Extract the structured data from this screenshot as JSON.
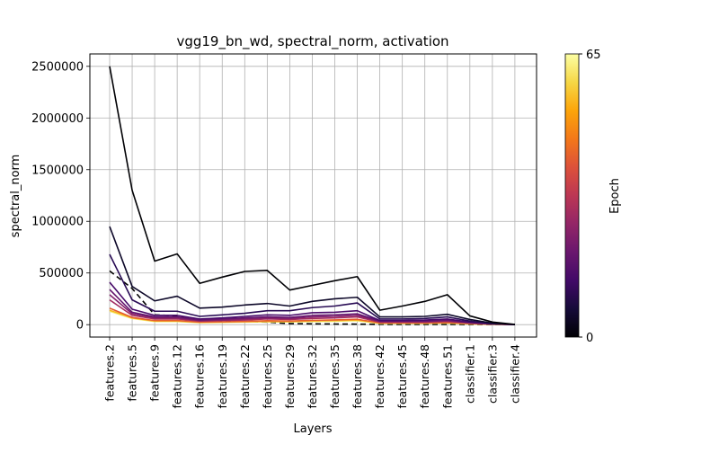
{
  "chart_data": {
    "type": "line",
    "title": "vgg19_bn_wd, spectral_norm, activation",
    "xlabel": "Layers",
    "ylabel": "spectral_norm",
    "categories": [
      "features.2",
      "features.5",
      "features.9",
      "features.12",
      "features.16",
      "features.19",
      "features.22",
      "features.25",
      "features.29",
      "features.32",
      "features.35",
      "features.38",
      "features.42",
      "features.45",
      "features.48",
      "features.51",
      "classifier.1",
      "classifier.3",
      "classifier.4"
    ],
    "ylim": [
      -120000,
      2620000
    ],
    "yticks": [
      0,
      500000,
      1000000,
      1500000,
      2000000,
      2500000
    ],
    "ytick_labels": [
      "0",
      "500000",
      "1000000",
      "1500000",
      "2000000",
      "2500000"
    ],
    "grid": true,
    "colorbar": {
      "label": "Epoch",
      "min": 0,
      "max": 65,
      "min_label": "0",
      "max_label": "65",
      "colormap": "inferno"
    },
    "series": [
      {
        "epoch": 0,
        "color": "#000004",
        "style": "solid",
        "values": [
          2500000,
          1300000,
          615000,
          685000,
          400000,
          460000,
          515000,
          525000,
          335000,
          380000,
          425000,
          465000,
          140000,
          180000,
          225000,
          290000,
          85000,
          25000,
          2000
        ]
      },
      {
        "epoch": 5,
        "color": "#0d0829",
        "style": "solid",
        "values": [
          950000,
          370000,
          230000,
          275000,
          160000,
          170000,
          190000,
          205000,
          180000,
          225000,
          250000,
          265000,
          75000,
          75000,
          80000,
          100000,
          50000,
          15000,
          1000
        ]
      },
      {
        "epoch": 9,
        "color": "#280b54",
        "style": "solid",
        "values": [
          680000,
          240000,
          130000,
          130000,
          80000,
          95000,
          110000,
          135000,
          135000,
          165000,
          180000,
          210000,
          55000,
          55000,
          60000,
          75000,
          35000,
          10000,
          1000
        ]
      },
      {
        "epoch": 14,
        "color": "#480b6a",
        "style": "solid",
        "values": [
          410000,
          150000,
          90000,
          90000,
          55000,
          65000,
          80000,
          95000,
          90000,
          115000,
          120000,
          135000,
          40000,
          40000,
          45000,
          55000,
          25000,
          8000,
          1000
        ]
      },
      {
        "epoch": 18,
        "color": "#65156e",
        "style": "solid",
        "values": [
          340000,
          120000,
          75000,
          75000,
          45000,
          55000,
          65000,
          75000,
          70000,
          90000,
          95000,
          105000,
          35000,
          35000,
          35000,
          45000,
          20000,
          7000,
          1000
        ]
      },
      {
        "epoch": 22,
        "color": "#82206c",
        "style": "solid",
        "values": [
          290000,
          105000,
          65000,
          65000,
          40000,
          45000,
          55000,
          65000,
          60000,
          75000,
          80000,
          90000,
          30000,
          30000,
          30000,
          38000,
          18000,
          6000,
          1000
        ]
      },
      {
        "epoch": 27,
        "color": "#a32c61",
        "style": "solid",
        "values": [
          240000,
          90000,
          55000,
          55000,
          35000,
          40000,
          45000,
          55000,
          50000,
          60000,
          65000,
          75000,
          25000,
          25000,
          25000,
          32000,
          15000,
          5000,
          1000
        ]
      },
      {
        "epoch": 40,
        "color": "#e55c30",
        "style": "solid",
        "values": [
          160000,
          70000,
          40000,
          40000,
          25000,
          28000,
          32000,
          38000,
          35000,
          42000,
          46000,
          52000,
          18000,
          18000,
          18000,
          22000,
          11000,
          4000,
          1000
        ]
      },
      {
        "epoch": 52,
        "color": "#f8b41e",
        "style": "solid",
        "values": [
          140000,
          65000,
          35000,
          35000,
          22000,
          25000,
          28000,
          32000,
          30000,
          36000,
          40000,
          45000,
          15000,
          15000,
          15000,
          19000,
          9000,
          3000,
          1000
        ]
      },
      {
        "epoch": 65,
        "color": "#f2ec6f",
        "style": "solid",
        "values": [
          130000,
          60000,
          30000,
          30000,
          20000,
          22000,
          25000,
          28000,
          26000,
          30000,
          33000,
          38000,
          12000,
          12000,
          12000,
          15000,
          7000,
          2000,
          1000
        ]
      },
      {
        "epoch": null,
        "color": "#000000",
        "style": "dashed",
        "values": [
          520000,
          350000,
          95000,
          85000,
          35000,
          30000,
          28000,
          25000,
          10000,
          8000,
          6000,
          5000,
          3000,
          2000,
          2000,
          2000,
          1500,
          1000,
          500
        ]
      }
    ]
  }
}
